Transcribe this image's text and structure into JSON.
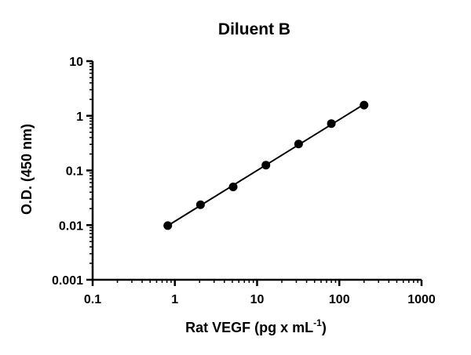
{
  "chart_data": {
    "type": "scatter",
    "title": "Diluent B",
    "xlabel": "Rat VEGF (pg x mL",
    "xlabel_sup": "-1",
    "xlabel_end": ")",
    "ylabel": "O.D. (450 nm)",
    "x_scale": "log",
    "y_scale": "log",
    "xlim": [
      0.1,
      1000
    ],
    "ylim": [
      0.001,
      10
    ],
    "x_ticks": [
      0.1,
      1,
      10,
      100,
      1000
    ],
    "x_tick_labels": [
      "0.1",
      "1",
      "10",
      "100",
      "1000"
    ],
    "y_ticks": [
      0.001,
      0.01,
      0.1,
      1,
      10
    ],
    "y_tick_labels": [
      "0.001",
      "0.01",
      "0.1",
      "1",
      "10"
    ],
    "grid": false,
    "legend": "none",
    "series": [
      {
        "x": [
          0.82,
          2.05,
          5.12,
          12.8,
          32,
          80,
          200
        ],
        "y": [
          0.0098,
          0.0236,
          0.05,
          0.125,
          0.305,
          0.72,
          1.57
        ]
      }
    ],
    "fit_curve": true,
    "colors": {
      "points": "#000000",
      "line": "#000000",
      "axes": "#000000"
    }
  }
}
